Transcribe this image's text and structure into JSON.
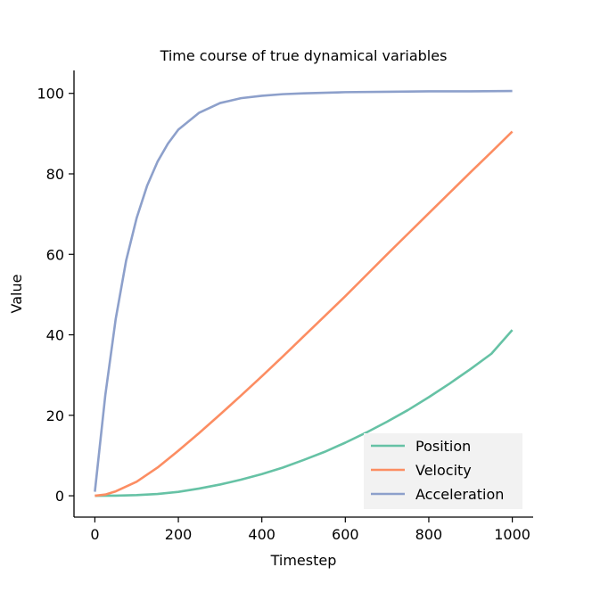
{
  "chart_data": {
    "type": "line",
    "title": "Time course of true dynamical variables",
    "xlabel": "Timestep",
    "ylabel": "Value",
    "xlim": [
      -50,
      1050
    ],
    "ylim": [
      -5.3,
      105.7
    ],
    "xticks": [
      0,
      200,
      400,
      600,
      800,
      1000
    ],
    "yticks": [
      0,
      20,
      40,
      60,
      80,
      100
    ],
    "grid": false,
    "legend_position": "lower-right",
    "series": [
      {
        "name": "Position",
        "color": "#66c2a5",
        "x": [
          0,
          50,
          100,
          150,
          200,
          250,
          300,
          350,
          400,
          450,
          500,
          550,
          600,
          650,
          700,
          750,
          800,
          850,
          900,
          950,
          1000
        ],
        "y": [
          0,
          0.04,
          0.16,
          0.45,
          0.98,
          1.8,
          2.8,
          4.0,
          5.4,
          7.0,
          8.9,
          10.9,
          13.2,
          15.7,
          18.4,
          21.3,
          24.5,
          27.9,
          31.5,
          35.3,
          41.2
        ]
      },
      {
        "name": "Velocity",
        "color": "#fc8d62",
        "x": [
          0,
          25,
          50,
          100,
          150,
          200,
          250,
          300,
          350,
          400,
          450,
          500,
          550,
          600,
          650,
          700,
          750,
          800,
          850,
          900,
          950,
          1000
        ],
        "y": [
          0,
          0.3,
          1.1,
          3.5,
          7.0,
          11.2,
          15.6,
          20.2,
          24.9,
          29.7,
          34.6,
          39.6,
          44.6,
          49.6,
          54.8,
          60.0,
          65.1,
          70.2,
          75.3,
          80.4,
          85.4,
          90.5
        ]
      },
      {
        "name": "Acceleration",
        "color": "#8da0cb",
        "x": [
          0,
          25,
          50,
          75,
          100,
          125,
          150,
          175,
          200,
          250,
          300,
          350,
          400,
          450,
          500,
          600,
          700,
          800,
          900,
          1000
        ],
        "y": [
          1.0,
          25.0,
          44.0,
          58.5,
          69.0,
          77.0,
          83.0,
          87.5,
          91.0,
          95.2,
          97.6,
          98.8,
          99.4,
          99.8,
          100.0,
          100.3,
          100.4,
          100.5,
          100.5,
          100.6
        ]
      }
    ]
  }
}
